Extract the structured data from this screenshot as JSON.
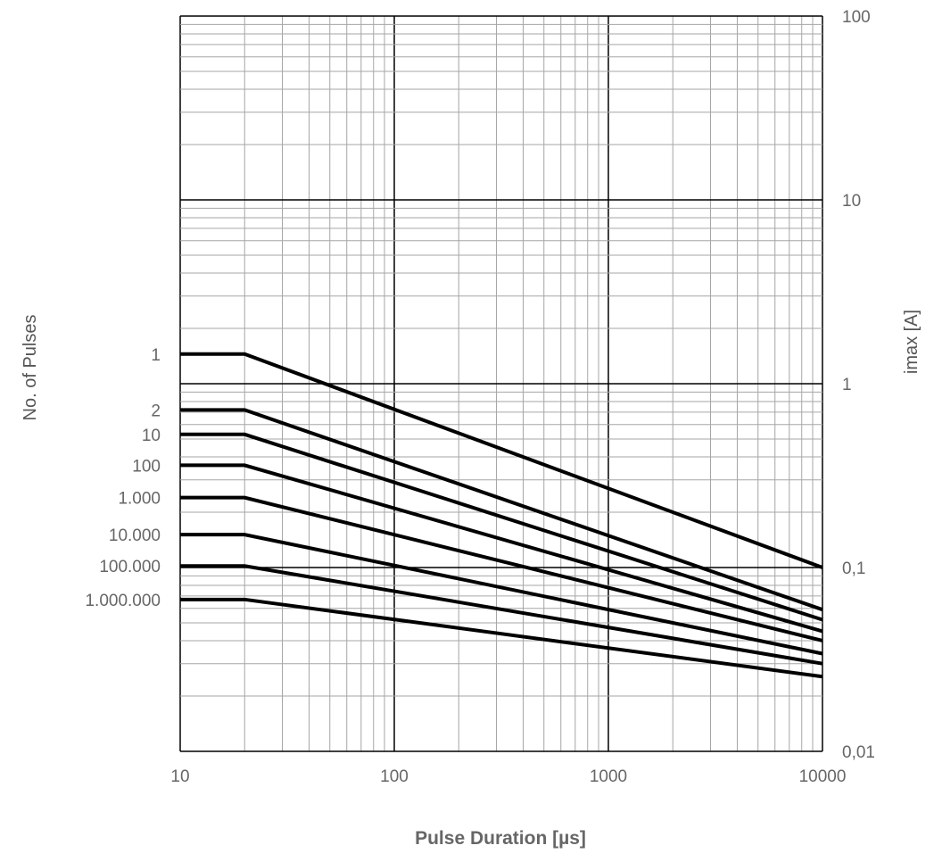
{
  "chart_data": {
    "type": "line",
    "xlabel": "Pulse Duration [µs]",
    "ylabel_left": "No. of Pulses",
    "ylabel_right": "imax [A]",
    "x_scale": "log",
    "y_scale": "log",
    "xlim": [
      10,
      10000
    ],
    "ylim": [
      0.01,
      100
    ],
    "x_tick_labels": [
      "10",
      "100",
      "1000",
      "10000"
    ],
    "y_tick_labels": [
      "0,01",
      "0,1",
      "1",
      "10",
      "100"
    ],
    "grid": true,
    "series": [
      {
        "name": "1",
        "x": [
          10,
          20,
          10000
        ],
        "y": [
          1.45,
          1.45,
          0.1
        ]
      },
      {
        "name": "2",
        "x": [
          10,
          20,
          10000
        ],
        "y": [
          0.72,
          0.72,
          0.059
        ]
      },
      {
        "name": "10",
        "x": [
          10,
          20,
          10000
        ],
        "y": [
          0.53,
          0.53,
          0.052
        ]
      },
      {
        "name": "100",
        "x": [
          10,
          20,
          10000
        ],
        "y": [
          0.36,
          0.36,
          0.045
        ]
      },
      {
        "name": "1.000",
        "x": [
          10,
          20,
          10000
        ],
        "y": [
          0.24,
          0.24,
          0.04
        ]
      },
      {
        "name": "10.000",
        "x": [
          10,
          20,
          10000
        ],
        "y": [
          0.151,
          0.151,
          0.034
        ]
      },
      {
        "name": "100.000",
        "x": [
          10,
          20,
          10000
        ],
        "y": [
          0.102,
          0.102,
          0.03
        ]
      },
      {
        "name": "1.000.000",
        "x": [
          10,
          20,
          10000
        ],
        "y": [
          0.067,
          0.067,
          0.0255
        ]
      }
    ]
  }
}
